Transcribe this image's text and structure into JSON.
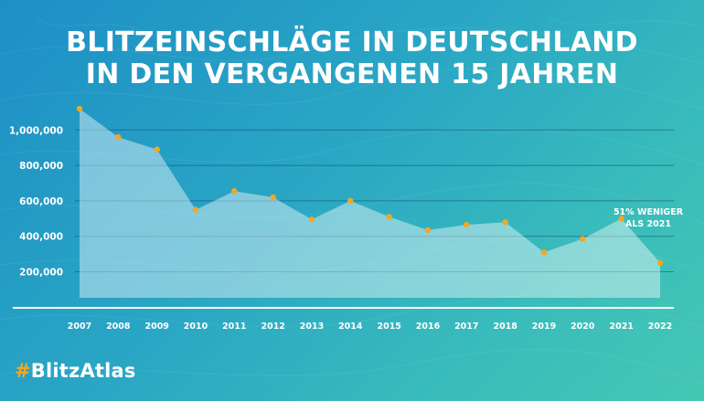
{
  "title": {
    "line1": "BLITZEINSCHLÄGE IN DEUTSCHLAND",
    "line2": "IN DEN VERGANGENEN 15 JAHREN"
  },
  "hashtag": {
    "symbol": "#",
    "text": "BlitzAtlas"
  },
  "colors": {
    "background_start": "#1d8fc6",
    "background_end": "#45c7b4",
    "area_fill": "#ffffff",
    "point": "#f5a623",
    "text": "#ffffff"
  },
  "chart_data": {
    "type": "area",
    "title": "BLITZEINSCHLÄGE IN DEUTSCHLAND IN DEN VERGANGENEN 15 JAHREN",
    "xlabel": "",
    "ylabel": "",
    "x": [
      "2007",
      "2008",
      "2009",
      "2010",
      "2011",
      "2012",
      "2013",
      "2014",
      "2015",
      "2016",
      "2017",
      "2018",
      "2019",
      "2020",
      "2021",
      "2022"
    ],
    "values": [
      1120000,
      960000,
      890000,
      550000,
      655000,
      620000,
      495000,
      600000,
      510000,
      435000,
      465000,
      480000,
      310000,
      385000,
      500000,
      250000
    ],
    "y_ticks": [
      200000,
      400000,
      600000,
      800000,
      1000000
    ],
    "y_tick_labels": [
      "200,000",
      "400,000",
      "600,000",
      "800,000",
      "1,000,000"
    ],
    "ylim": [
      0,
      1200000
    ],
    "grid": true,
    "legend": "none",
    "annotation": {
      "line1": "51% WENIGER",
      "line2": "ALS 2021"
    }
  }
}
